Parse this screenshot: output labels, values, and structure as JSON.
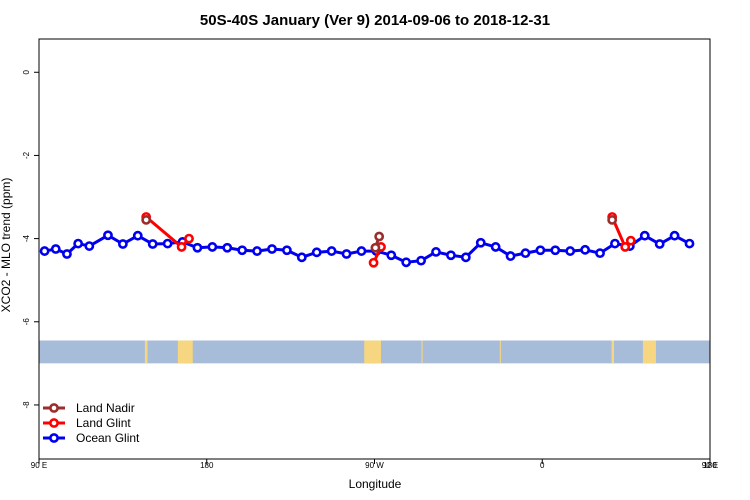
{
  "chart_data": {
    "type": "line",
    "title": "50S-40S January (Ver 9)   2014-09-06 to 2018-12-31",
    "xlabel": "Longitude",
    "ylabel": "XCO2 - MLO trend (ppm)",
    "xlim": [
      90,
      450
    ],
    "ylim": [
      -9.3,
      0.8
    ],
    "x_ticks": [
      {
        "value": 90,
        "label": "90 E"
      },
      {
        "value": 180,
        "label": "180"
      },
      {
        "value": 270,
        "label": "90 W"
      },
      {
        "value": 360,
        "label": "0"
      },
      {
        "value": 450,
        "label": "90 E"
      },
      {
        "value": 540,
        "label": "180"
      }
    ],
    "y_ticks": [
      {
        "value": 0,
        "label": "0"
      },
      {
        "value": -2,
        "label": "-2"
      },
      {
        "value": -4,
        "label": "-4"
      },
      {
        "value": -6,
        "label": "-6"
      },
      {
        "value": -8,
        "label": "-8"
      }
    ],
    "series": [
      {
        "name": "Land Nadir",
        "color": "#9b2d2d",
        "segments": [
          [
            [
              147.5,
              -3.55
            ]
          ],
          [
            [
              270.5,
              -4.22
            ],
            [
              272.5,
              -3.95
            ]
          ],
          [
            [
              397.5,
              -3.55
            ]
          ]
        ]
      },
      {
        "name": "Land Glint",
        "color": "#ff0000",
        "segments": [
          [
            [
              147.5,
              -3.48
            ],
            [
              166.5,
              -4.2
            ],
            [
              170.5,
              -4.0
            ]
          ],
          [
            [
              269.5,
              -4.58
            ],
            [
              273.5,
              -4.2
            ]
          ],
          [
            [
              397.5,
              -3.48
            ],
            [
              404.5,
              -4.2
            ],
            [
              407.5,
              -4.05
            ]
          ]
        ]
      },
      {
        "name": "Ocean Glint",
        "color": "#0000ee",
        "segments": [
          [
            [
              93,
              -4.3
            ],
            [
              99,
              -4.25
            ],
            [
              105,
              -4.37
            ],
            [
              111,
              -4.12
            ],
            [
              117,
              -4.18
            ],
            [
              127,
              -3.92
            ],
            [
              135,
              -4.13
            ],
            [
              143,
              -3.93
            ],
            [
              151,
              -4.13
            ],
            [
              159,
              -4.12
            ],
            [
              167,
              -4.08
            ],
            [
              175,
              -4.22
            ],
            [
              183,
              -4.2
            ],
            [
              191,
              -4.22
            ],
            [
              199,
              -4.28
            ],
            [
              207,
              -4.3
            ],
            [
              215,
              -4.25
            ],
            [
              223,
              -4.28
            ],
            [
              231,
              -4.45
            ],
            [
              239,
              -4.33
            ],
            [
              247,
              -4.3
            ],
            [
              255,
              -4.37
            ],
            [
              263,
              -4.3
            ],
            [
              271,
              -4.3
            ],
            [
              279,
              -4.4
            ],
            [
              287,
              -4.57
            ],
            [
              295,
              -4.53
            ],
            [
              303,
              -4.32
            ],
            [
              311,
              -4.4
            ],
            [
              319,
              -4.45
            ],
            [
              327,
              -4.1
            ],
            [
              335,
              -4.2
            ],
            [
              343,
              -4.42
            ],
            [
              351,
              -4.35
            ],
            [
              359,
              -4.28
            ],
            [
              367,
              -4.28
            ],
            [
              375,
              -4.3
            ],
            [
              383,
              -4.27
            ],
            [
              391,
              -4.35
            ],
            [
              399,
              -4.12
            ],
            [
              407,
              -4.18
            ],
            [
              415,
              -3.93
            ],
            [
              423,
              -4.13
            ],
            [
              431,
              -3.93
            ],
            [
              439,
              -4.12
            ]
          ]
        ]
      }
    ],
    "map_strip": {
      "y_top": -6.45,
      "y_bottom": -7.0,
      "ocean_color": "#a7bcd9",
      "land_color": "#f6d681",
      "land_lon": [
        [
          146.8,
          148.2
        ],
        [
          164.5,
          172.5
        ],
        [
          264.5,
          273.5
        ],
        [
          295.2,
          295.8
        ],
        [
          337.2,
          337.8
        ],
        [
          397.2,
          398.5
        ],
        [
          414.0,
          421.0
        ]
      ]
    },
    "legend_position": "bottom-left",
    "grid": false
  }
}
